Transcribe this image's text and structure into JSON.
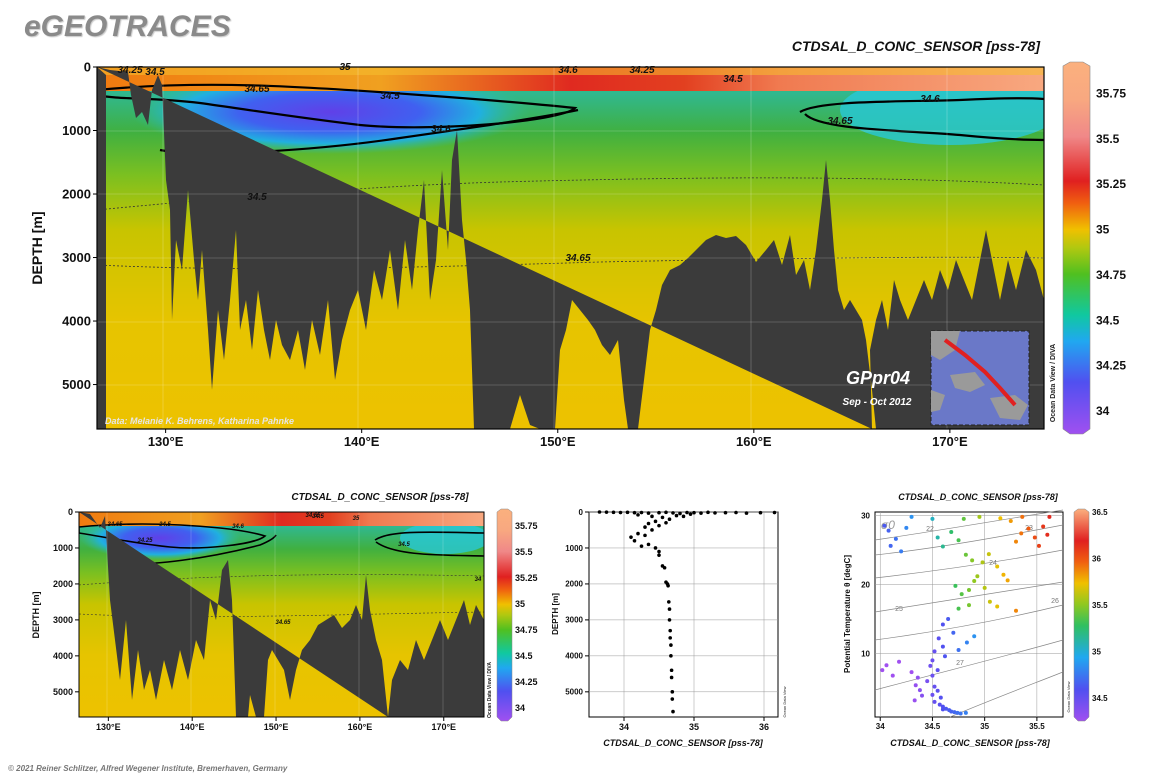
{
  "brand": "eGEOTRACES",
  "copyright": "© 2021 Reiner Schlitzer, Alfred Wegener Institute, Bremerhaven, Germany",
  "colors": {
    "land": "#3b3b3b",
    "frame": "#000000",
    "background": "#ffffff"
  },
  "chart_data": [
    {
      "type": "heatmap",
      "panel": "main-section",
      "title": "CTDSAL_D_CONC_SENSOR [pss-78]",
      "ylabel": "DEPTH [m]",
      "xlabel": "",
      "x_ticks": [
        "130°E",
        "140°E",
        "150°E",
        "160°E",
        "170°E"
      ],
      "x_tick_values": [
        130,
        140,
        150,
        160,
        170
      ],
      "xlim": [
        126.5,
        174.8
      ],
      "y_ticks": [
        "0",
        "1000",
        "2000",
        "3000",
        "4000",
        "5000"
      ],
      "y_tick_values": [
        0,
        1000,
        2000,
        3000,
        4000,
        5000
      ],
      "ylim": [
        0,
        5700
      ],
      "y_reversed": true,
      "colorbar": {
        "ticks": [
          "35.75",
          "35.5",
          "35.25",
          "35",
          "34.75",
          "34.5",
          "34.25",
          "34"
        ],
        "values": [
          35.75,
          35.5,
          35.25,
          35,
          34.75,
          34.5,
          34.25,
          34
        ],
        "range": [
          33.9,
          35.9
        ],
        "label": "Ocean Data View / DIVA"
      },
      "contour_labels": [
        "34.25",
        "34.5",
        "34.65",
        "34.5",
        "34.6",
        "35",
        "34.6",
        "34.25",
        "34.5",
        "34.6",
        "34.65",
        "34.5",
        "34.65"
      ],
      "credit": "Data: Melanie K. Behrens, Katharina Pahnke",
      "cruise": "GPpr04",
      "cruise_dates": "Sep - Oct 2012",
      "grid": true
    },
    {
      "type": "heatmap",
      "panel": "small-section",
      "title": "CTDSAL_D_CONC_SENSOR [pss-78]",
      "ylabel": "DEPTH [m]",
      "x_ticks": [
        "130°E",
        "140°E",
        "150°E",
        "160°E",
        "170°E"
      ],
      "x_tick_values": [
        130,
        140,
        150,
        160,
        170
      ],
      "xlim": [
        126.5,
        174.8
      ],
      "y_ticks": [
        "0",
        "1000",
        "2000",
        "3000",
        "4000",
        "5000"
      ],
      "y_tick_values": [
        0,
        1000,
        2000,
        3000,
        4000,
        5000
      ],
      "ylim": [
        0,
        5700
      ],
      "colorbar": {
        "ticks": [
          "35.75",
          "35.5",
          "35.25",
          "35",
          "34.75",
          "34.5",
          "34.25",
          "34"
        ],
        "values": [
          35.75,
          35.5,
          35.25,
          35,
          34.75,
          34.5,
          34.25,
          34
        ],
        "range": [
          33.9,
          35.9
        ],
        "label": "Ocean Data View / DIVA"
      },
      "contour_labels": [
        "34.65",
        "34.5",
        "34.6",
        "34.25",
        "34.5",
        "35",
        "34.65",
        "34.5",
        "34.65",
        "34"
      ],
      "grid": true
    },
    {
      "type": "scatter",
      "panel": "profile",
      "xlabel": "CTDSAL_D_CONC_SENSOR [pss-78]",
      "ylabel": "DEPTH [m]",
      "x_ticks": [
        "34",
        "35",
        "36"
      ],
      "x_tick_values": [
        34,
        35,
        36
      ],
      "xlim": [
        33.5,
        36.2
      ],
      "y_ticks": [
        "0",
        "1000",
        "2000",
        "3000",
        "4000",
        "5000"
      ],
      "y_tick_values": [
        0,
        1000,
        2000,
        3000,
        4000,
        5000
      ],
      "ylim": [
        0,
        5700
      ],
      "side_label": "Ocean Data View",
      "points": [
        [
          33.65,
          0
        ],
        [
          33.75,
          5
        ],
        [
          33.85,
          10
        ],
        [
          33.95,
          15
        ],
        [
          34.05,
          10
        ],
        [
          34.15,
          20
        ],
        [
          34.25,
          15
        ],
        [
          34.35,
          30
        ],
        [
          34.5,
          20
        ],
        [
          34.6,
          10
        ],
        [
          34.7,
          25
        ],
        [
          34.8,
          40
        ],
        [
          34.9,
          15
        ],
        [
          35.0,
          20
        ],
        [
          35.1,
          30
        ],
        [
          35.2,
          10
        ],
        [
          35.3,
          25
        ],
        [
          35.45,
          20
        ],
        [
          35.6,
          15
        ],
        [
          35.75,
          30
        ],
        [
          35.95,
          20
        ],
        [
          36.15,
          15
        ],
        [
          34.2,
          80
        ],
        [
          34.4,
          120
        ],
        [
          34.55,
          150
        ],
        [
          34.75,
          100
        ],
        [
          34.85,
          120
        ],
        [
          34.95,
          60
        ],
        [
          34.65,
          200
        ],
        [
          34.45,
          260
        ],
        [
          34.35,
          320
        ],
        [
          34.6,
          300
        ],
        [
          34.5,
          380
        ],
        [
          34.3,
          420
        ],
        [
          34.4,
          500
        ],
        [
          34.2,
          600
        ],
        [
          34.3,
          650
        ],
        [
          34.1,
          700
        ],
        [
          34.15,
          800
        ],
        [
          34.35,
          900
        ],
        [
          34.25,
          950
        ],
        [
          34.45,
          1000
        ],
        [
          34.5,
          1100
        ],
        [
          34.5,
          1200
        ],
        [
          34.55,
          1500
        ],
        [
          34.58,
          1550
        ],
        [
          34.6,
          1950
        ],
        [
          34.62,
          2000
        ],
        [
          34.63,
          2050
        ],
        [
          34.64,
          2500
        ],
        [
          34.65,
          2700
        ],
        [
          34.65,
          3000
        ],
        [
          34.66,
          3300
        ],
        [
          34.66,
          3500
        ],
        [
          34.67,
          3700
        ],
        [
          34.67,
          4000
        ],
        [
          34.68,
          4400
        ],
        [
          34.68,
          4600
        ],
        [
          34.69,
          5000
        ],
        [
          34.69,
          5200
        ],
        [
          34.7,
          5550
        ]
      ]
    },
    {
      "type": "scatter",
      "panel": "ts-diagram",
      "title": "CTDSAL_D_CONC_SENSOR [pss-78]",
      "xlabel": "CTDSAL_D_CONC_SENSOR [pss-78]",
      "ylabel": "Potential Temperature θ [degC]",
      "x_ticks": [
        "34",
        "34.5",
        "35",
        "35.5"
      ],
      "x_tick_values": [
        34,
        34.5,
        35,
        35.5
      ],
      "xlim": [
        33.95,
        35.75
      ],
      "y_ticks": [
        "10",
        "20",
        "30"
      ],
      "y_tick_values": [
        10,
        20,
        30
      ],
      "ylim": [
        0.8,
        30.5
      ],
      "isopycnal_symbol": "σ0",
      "isopycnal_labels": [
        "22",
        "23",
        "24",
        "25",
        "26",
        "27"
      ],
      "colorbar": {
        "ticks": [
          "36.5",
          "36",
          "35.5",
          "35",
          "34.5"
        ],
        "values": [
          36.5,
          36,
          35.5,
          35,
          34.5
        ],
        "range": [
          34.3,
          36.5
        ],
        "label": "Ocean Data View"
      },
      "points": [
        [
          34.04,
          28.5
        ],
        [
          34.08,
          27.8
        ],
        [
          34.15,
          26.6
        ],
        [
          34.1,
          25.6
        ],
        [
          34.2,
          24.8
        ],
        [
          34.3,
          29.8
        ],
        [
          34.25,
          28.2
        ],
        [
          34.5,
          29.5
        ],
        [
          34.55,
          26.8
        ],
        [
          34.6,
          25.5
        ],
        [
          34.68,
          27.6
        ],
        [
          34.75,
          26.4
        ],
        [
          34.82,
          24.3
        ],
        [
          34.88,
          23.5
        ],
        [
          34.93,
          21.2
        ],
        [
          34.98,
          23.2
        ],
        [
          35.04,
          24.4
        ],
        [
          35.12,
          22.6
        ],
        [
          35.18,
          21.4
        ],
        [
          35.22,
          20.6
        ],
        [
          35.3,
          26.2
        ],
        [
          35.35,
          27.4
        ],
        [
          35.42,
          28.1
        ],
        [
          35.48,
          26.8
        ],
        [
          35.52,
          25.6
        ],
        [
          35.56,
          28.4
        ],
        [
          35.6,
          27.2
        ],
        [
          35.62,
          29.8
        ],
        [
          35.36,
          29.8
        ],
        [
          35.25,
          29.2
        ],
        [
          35.15,
          29.6
        ],
        [
          34.95,
          29.8
        ],
        [
          34.8,
          29.5
        ],
        [
          34.72,
          19.8
        ],
        [
          34.78,
          18.6
        ],
        [
          34.85,
          19.2
        ],
        [
          34.9,
          20.5
        ],
        [
          35.0,
          19.5
        ],
        [
          35.05,
          17.5
        ],
        [
          35.12,
          16.8
        ],
        [
          35.3,
          16.2
        ],
        [
          34.85,
          17.0
        ],
        [
          34.75,
          16.5
        ],
        [
          34.65,
          15.0
        ],
        [
          34.6,
          14.2
        ],
        [
          34.7,
          13.0
        ],
        [
          34.56,
          12.2
        ],
        [
          34.6,
          11.0
        ],
        [
          34.52,
          10.3
        ],
        [
          34.62,
          9.6
        ],
        [
          34.75,
          10.5
        ],
        [
          34.83,
          11.6
        ],
        [
          34.9,
          12.5
        ],
        [
          34.5,
          9.0
        ],
        [
          34.48,
          8.2
        ],
        [
          34.55,
          7.6
        ],
        [
          34.5,
          6.8
        ],
        [
          34.45,
          6.0
        ],
        [
          34.52,
          5.2
        ],
        [
          34.55,
          4.6
        ],
        [
          34.5,
          4.0
        ],
        [
          34.58,
          3.6
        ],
        [
          34.52,
          3.0
        ],
        [
          34.57,
          2.6
        ],
        [
          34.6,
          2.3
        ],
        [
          34.63,
          2.0
        ],
        [
          34.66,
          1.8
        ],
        [
          34.68,
          1.6
        ],
        [
          34.71,
          1.5
        ],
        [
          34.74,
          1.4
        ],
        [
          34.77,
          1.3
        ],
        [
          34.82,
          1.4
        ],
        [
          34.6,
          1.9
        ],
        [
          34.3,
          7.3
        ],
        [
          34.36,
          6.5
        ],
        [
          34.34,
          5.4
        ],
        [
          34.38,
          4.7
        ],
        [
          34.4,
          3.9
        ],
        [
          34.33,
          3.2
        ],
        [
          34.12,
          6.8
        ],
        [
          34.06,
          8.3
        ],
        [
          34.18,
          8.8
        ],
        [
          34.02,
          7.6
        ]
      ]
    }
  ]
}
